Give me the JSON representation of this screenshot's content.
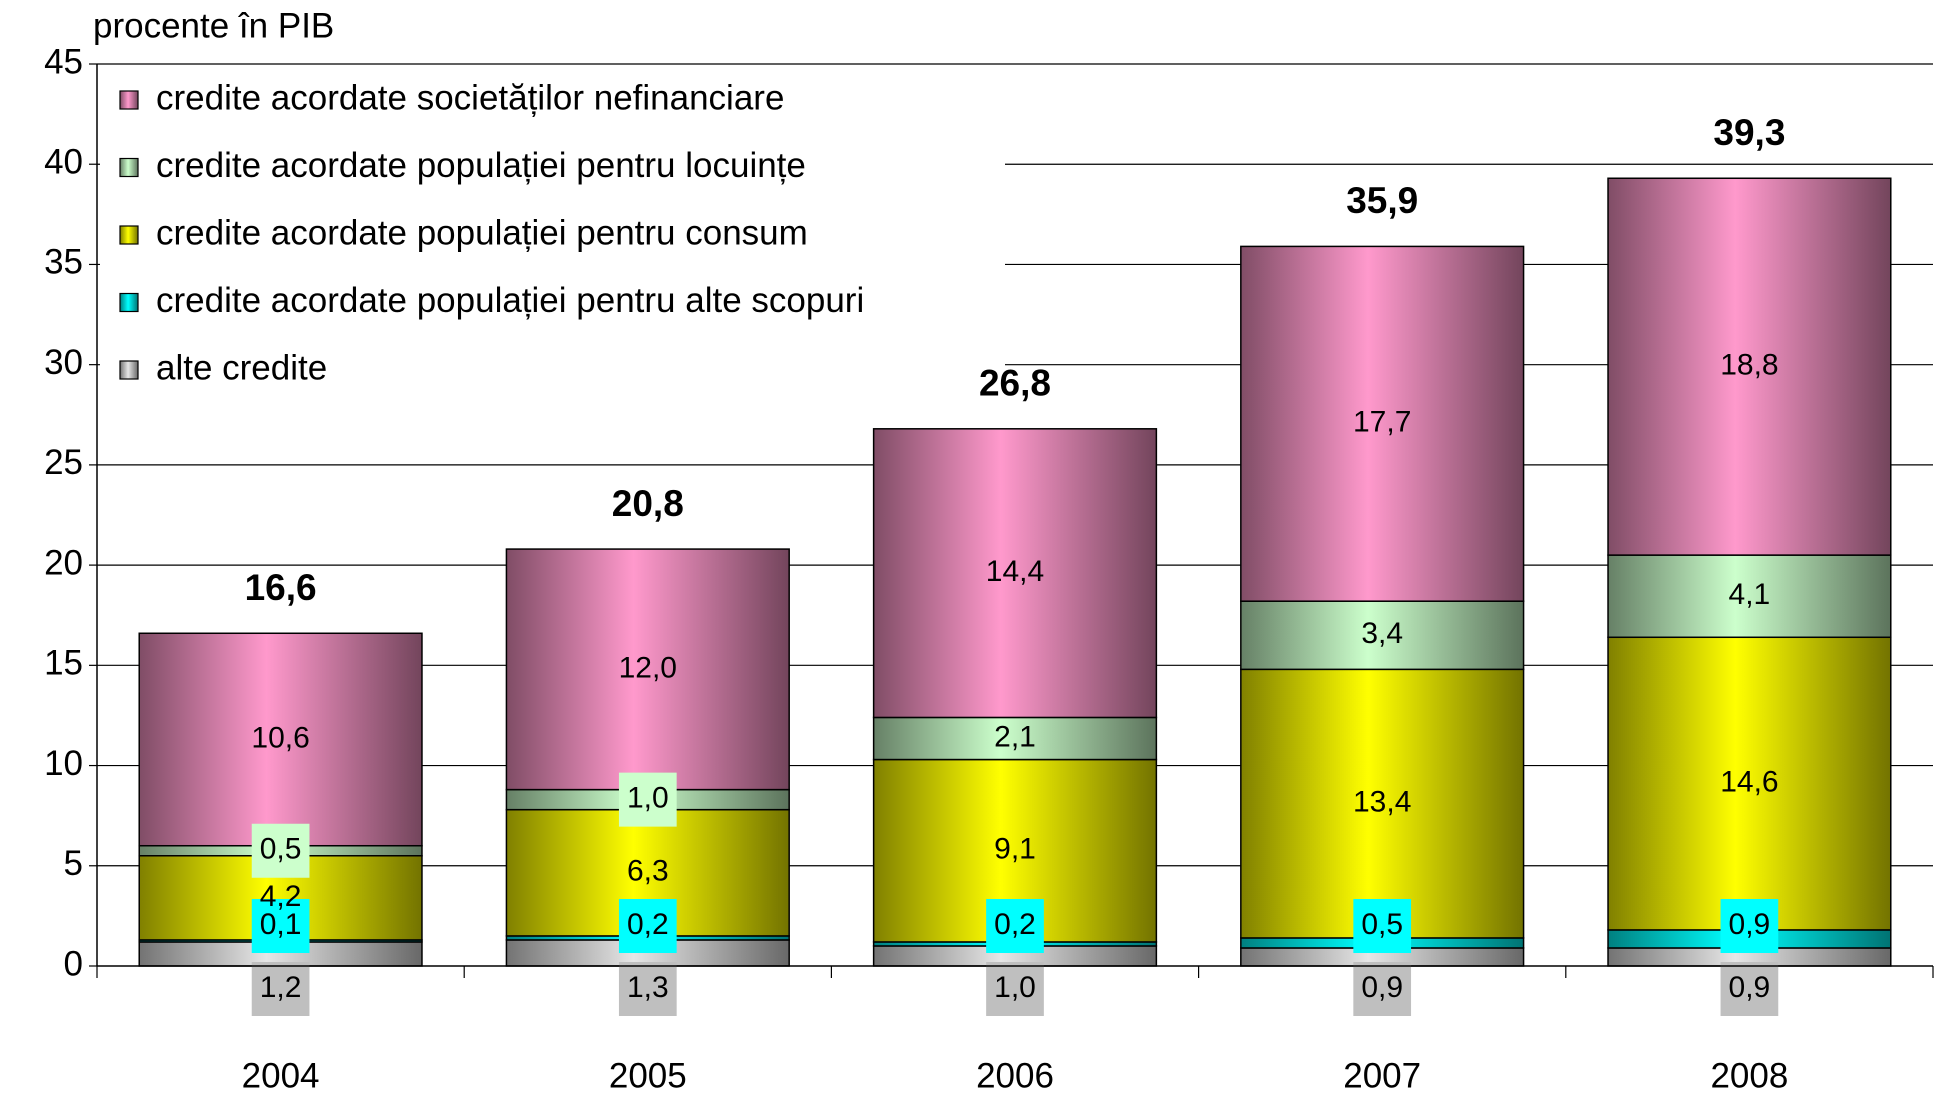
{
  "chart_data": {
    "type": "stacked-bar",
    "y_label": "procente în PIB",
    "categories": [
      "2004",
      "2005",
      "2006",
      "2007",
      "2008"
    ],
    "series": [
      {
        "name": "alte credite",
        "color": "#e6e6e6",
        "values": [
          1.2,
          1.3,
          1.0,
          0.9,
          0.9
        ],
        "value_labels": [
          "1,2",
          "1,3",
          "1,0",
          "0,9",
          "0,9"
        ]
      },
      {
        "name": "credite acordate populației pentru alte scopuri",
        "color": "#00ffff",
        "values": [
          0.1,
          0.2,
          0.2,
          0.5,
          0.9
        ],
        "value_labels": [
          "0,1",
          "0,2",
          "0,2",
          "0,5",
          "0,9"
        ]
      },
      {
        "name": "credite acordate populației pentru consum",
        "color": "#ffff00",
        "values": [
          4.2,
          6.3,
          9.1,
          13.4,
          14.6
        ],
        "value_labels": [
          "4,2",
          "6,3",
          "9,1",
          "13,4",
          "14,6"
        ]
      },
      {
        "name": "credite acordate populației pentru locuințe",
        "color": "#ccffcc",
        "values": [
          0.5,
          1.0,
          2.1,
          3.4,
          4.1
        ],
        "value_labels": [
          "0,5",
          "1,0",
          "2,1",
          "3,4",
          "4,1"
        ]
      },
      {
        "name": "credite acordate societăților nefinanciare",
        "color": "#ff99cc",
        "values": [
          10.6,
          12.0,
          14.4,
          17.7,
          18.8
        ],
        "value_labels": [
          "10,6",
          "12,0",
          "14,4",
          "17,7",
          "18,8"
        ]
      }
    ],
    "totals": [
      16.6,
      20.8,
      26.8,
      35.9,
      39.3
    ],
    "total_labels": [
      "16,6",
      "20,8",
      "26,8",
      "35,9",
      "39,3"
    ],
    "ylim": [
      0,
      45
    ],
    "yticks": [
      0,
      5,
      10,
      15,
      20,
      25,
      30,
      35,
      40,
      45
    ],
    "grid": true,
    "legend": "top-left"
  }
}
